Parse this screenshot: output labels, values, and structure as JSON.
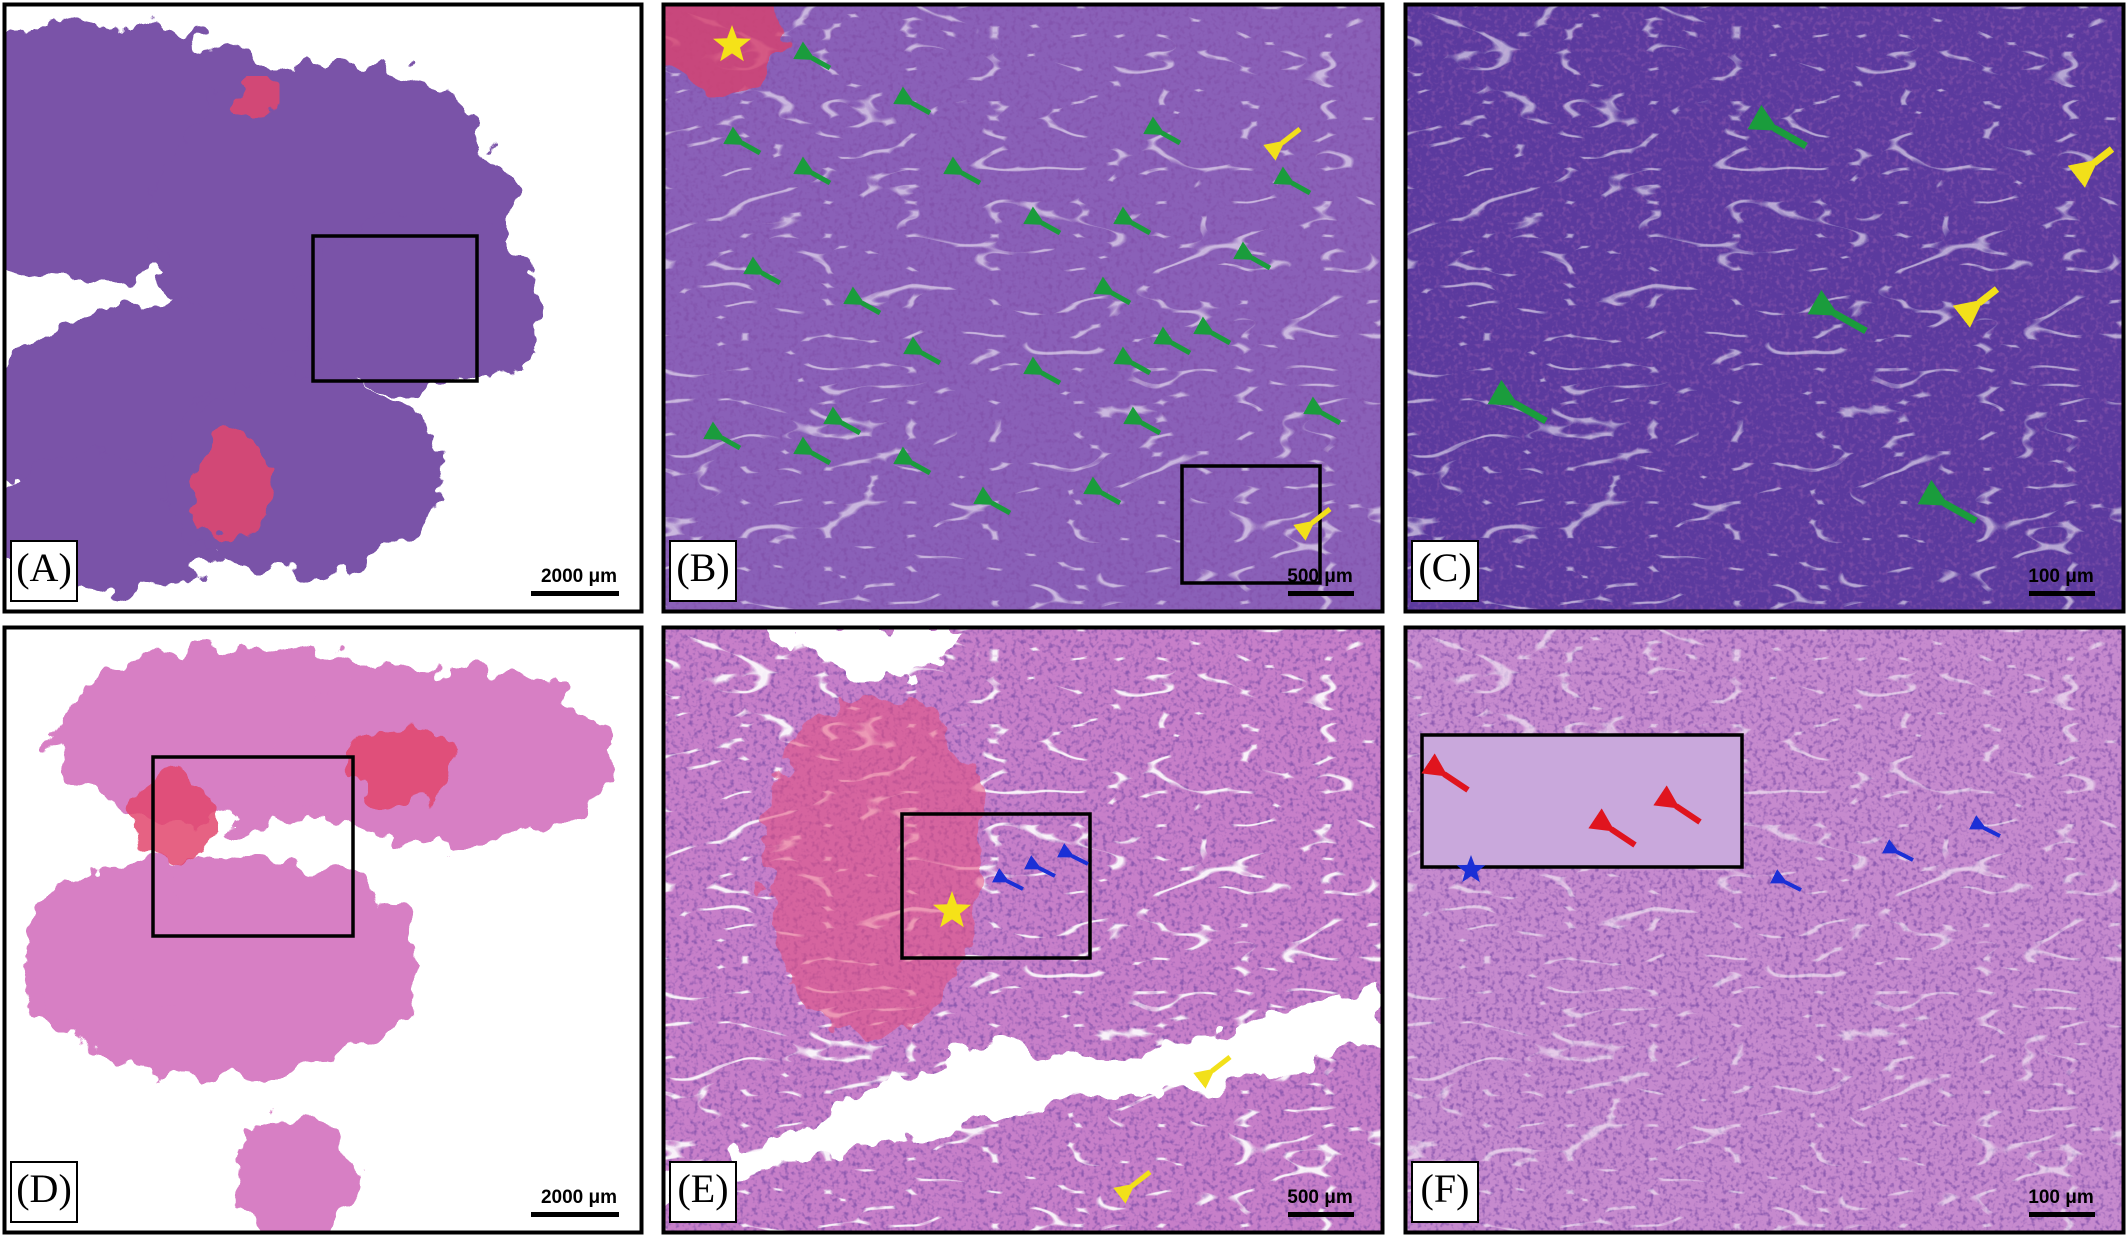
{
  "panels": [
    {
      "label": "(A)",
      "scale_bar": "2000 μm"
    },
    {
      "label": "(B)",
      "scale_bar": "500 μm"
    },
    {
      "label": "(C)",
      "scale_bar": "100 μm"
    },
    {
      "label": "(D)",
      "scale_bar": "2000 μm"
    },
    {
      "label": "(E)",
      "scale_bar": "500 μm"
    },
    {
      "label": "(F)",
      "scale_bar": "100 μm"
    }
  ]
}
